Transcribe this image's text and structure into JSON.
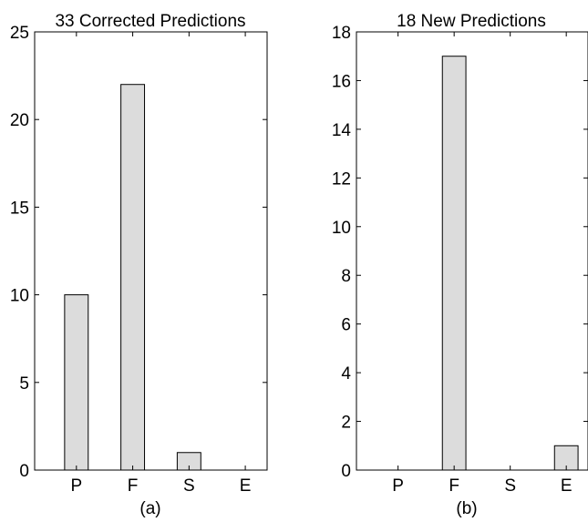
{
  "chart_data": [
    {
      "type": "bar",
      "title": "33 Corrected Predictions",
      "subtitle": "(a)",
      "categories": [
        "P",
        "F",
        "S",
        "E"
      ],
      "values": [
        10,
        22,
        1,
        0
      ],
      "ylim": [
        0,
        25
      ],
      "yticks": [
        0,
        5,
        10,
        15,
        20,
        25
      ],
      "xlabel": "",
      "ylabel": "",
      "bar_color": "#dcdcdc",
      "grid": false
    },
    {
      "type": "bar",
      "title": "18 New Predictions",
      "subtitle": "(b)",
      "categories": [
        "P",
        "F",
        "S",
        "E"
      ],
      "values": [
        0,
        17,
        0,
        1
      ],
      "ylim": [
        0,
        18
      ],
      "yticks": [
        0,
        2,
        4,
        6,
        8,
        10,
        12,
        14,
        16,
        18
      ],
      "xlabel": "",
      "ylabel": "",
      "bar_color": "#dcdcdc",
      "grid": false
    }
  ]
}
